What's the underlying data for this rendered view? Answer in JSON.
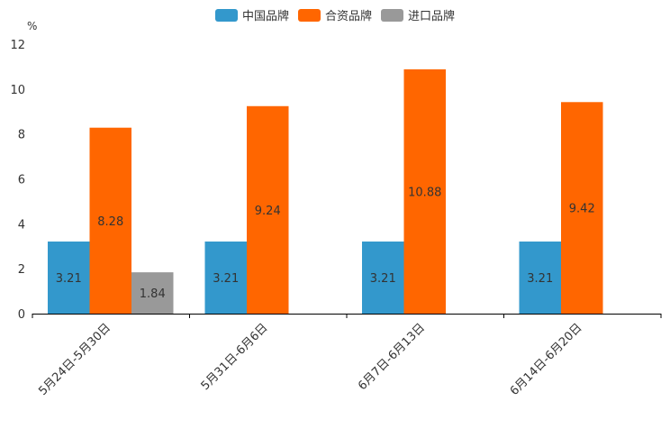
{
  "chart_data": {
    "type": "bar",
    "unit": "%",
    "categories": [
      "5月24日-5月30日",
      "5月31日-6月6日",
      "6月7日-6月13日",
      "6月14日-6月20日"
    ],
    "series": [
      {
        "name": "中国品牌",
        "color": "#3398cc",
        "values": [
          3.21,
          3.21,
          3.21,
          3.21
        ],
        "labels": [
          "3.21",
          "3.21",
          "3.21",
          "3.21"
        ]
      },
      {
        "name": "合资品牌",
        "color": "#ff6600",
        "values": [
          8.28,
          9.24,
          10.88,
          9.42
        ],
        "labels": [
          "8.28",
          "9.24",
          "10.88",
          "9.42"
        ]
      },
      {
        "name": "进口品牌",
        "color": "#999999",
        "values": [
          1.84,
          null,
          null,
          null
        ],
        "labels": [
          "1.84",
          null,
          null,
          null
        ]
      }
    ],
    "yticks": [
      "0",
      "2",
      "4",
      "6",
      "8",
      "10",
      "12"
    ],
    "ylim": [
      0,
      12
    ],
    "legend_position": "top-center"
  }
}
